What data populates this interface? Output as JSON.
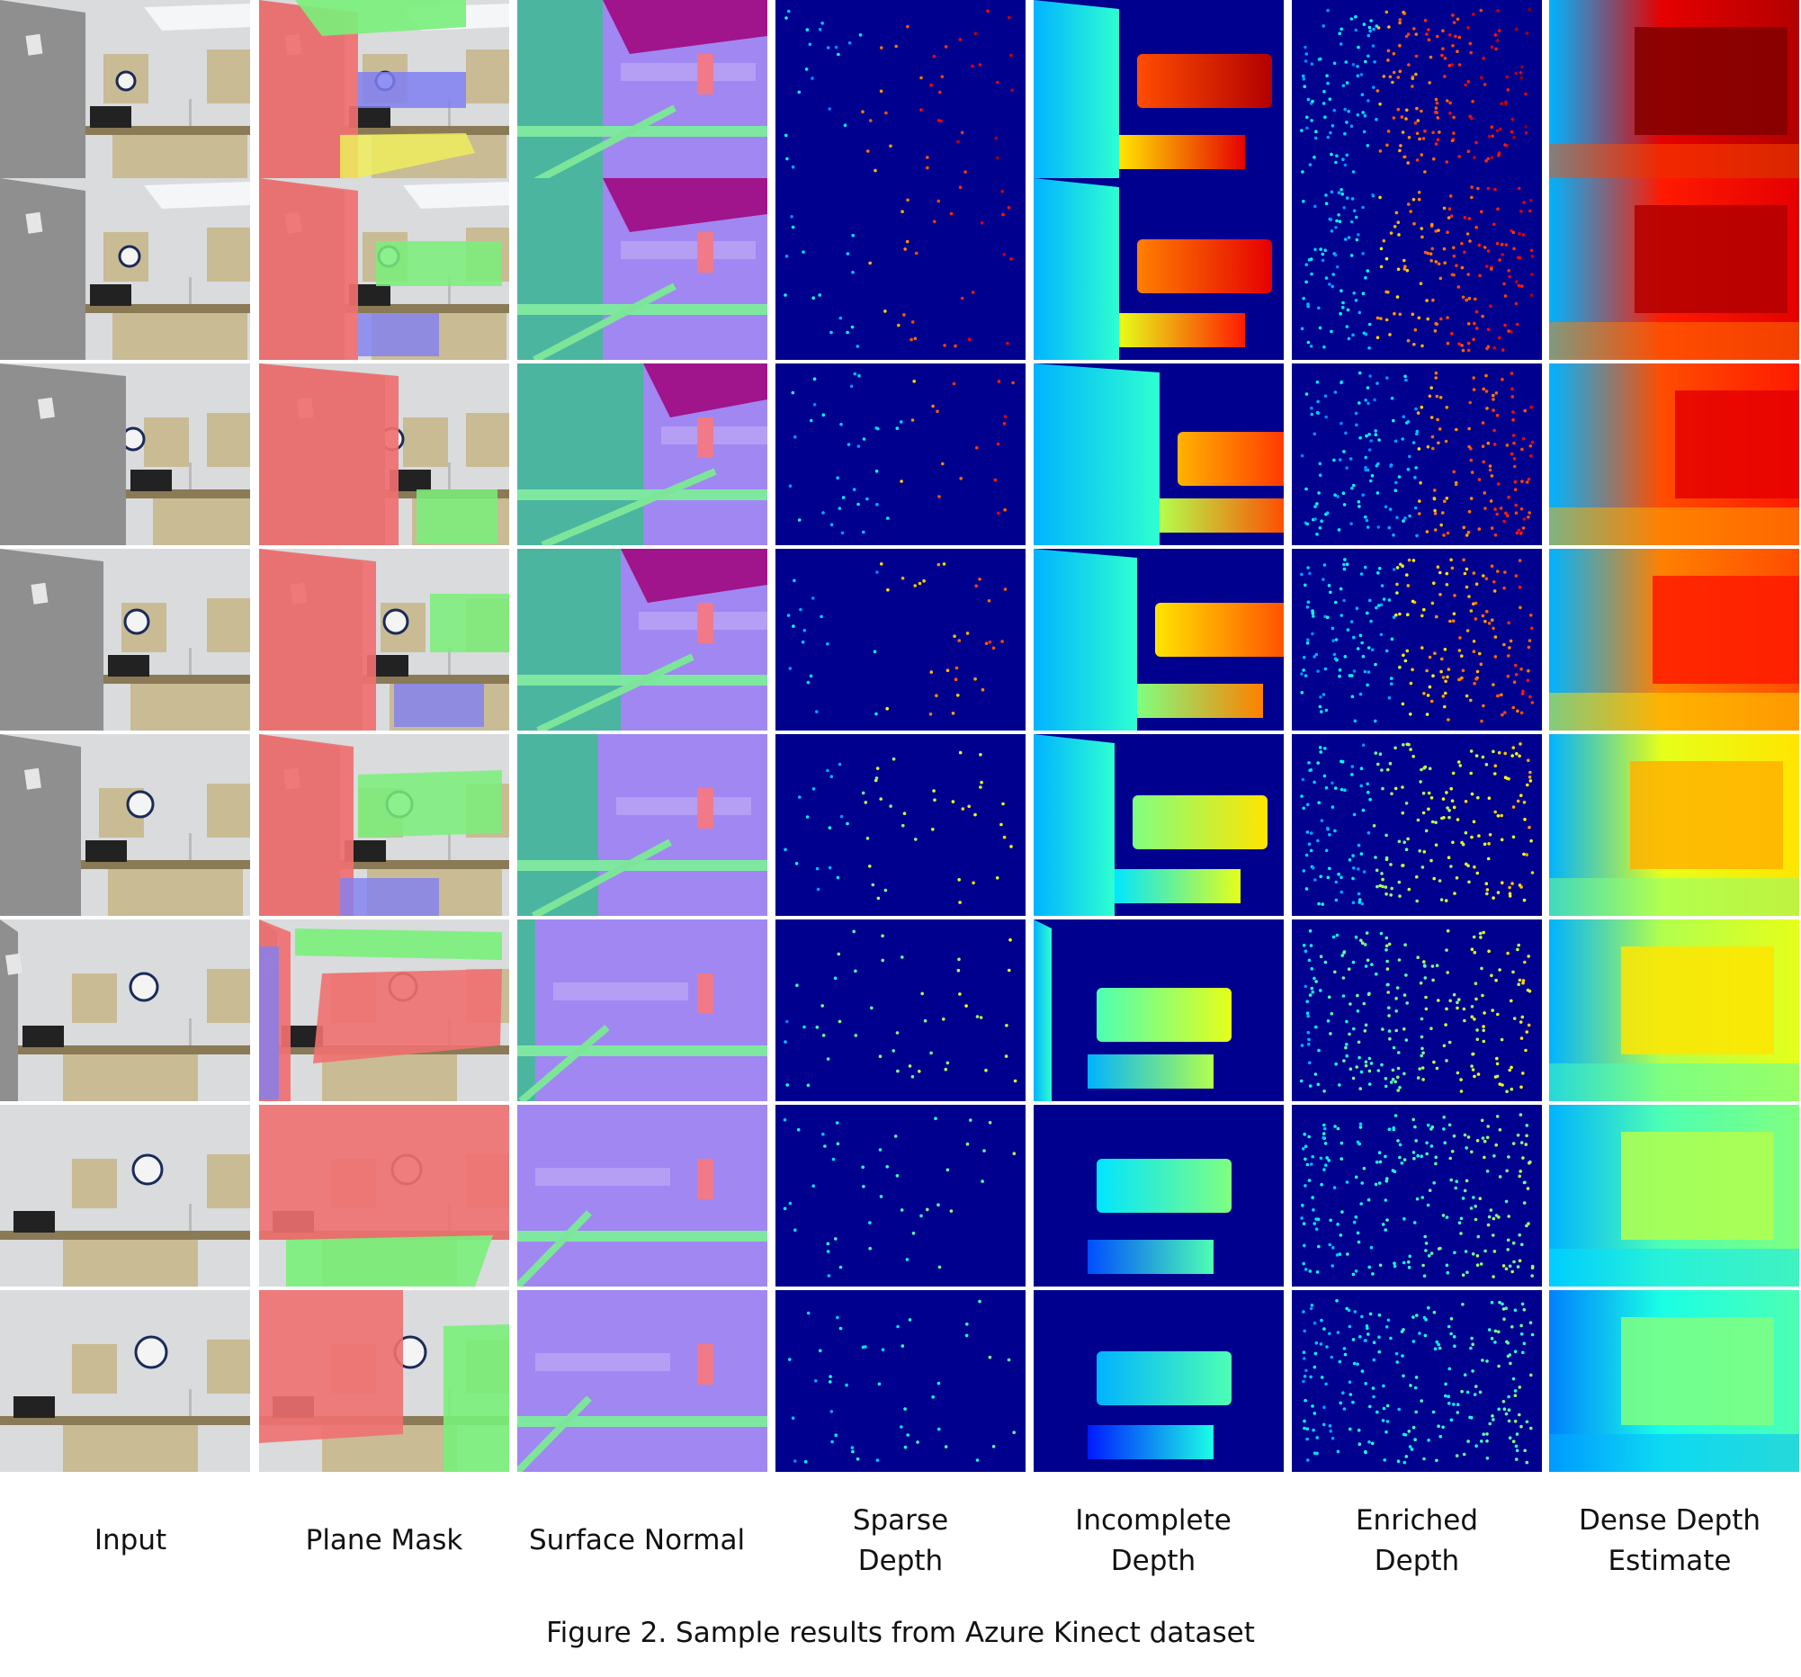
{
  "figure": {
    "caption": "Figure 2. Sample results from Azure Kinect dataset",
    "row_count": 8,
    "columns": [
      {
        "id": "input",
        "label": "Input",
        "kind": "photo"
      },
      {
        "id": "plane",
        "label": "Plane Mask",
        "kind": "plane"
      },
      {
        "id": "normal",
        "label": "Surface Normal",
        "kind": "normal"
      },
      {
        "id": "sparse",
        "label": "Sparse\nDepth",
        "kind": "sparse"
      },
      {
        "id": "incomplete",
        "label": "Incomplete\nDepth",
        "kind": "incomplete"
      },
      {
        "id": "enriched",
        "label": "Enriched\nDepth",
        "kind": "enriched"
      },
      {
        "id": "dense",
        "label": "Dense Depth\nEstimate",
        "kind": "dense"
      }
    ]
  },
  "colors": {
    "depth_background": "#00008f",
    "plane_red": "#f07070",
    "plane_green": "#79f07a",
    "plane_blue": "#7f7ff2",
    "plane_yellow": "#eded5c",
    "wall_gray": "#8f8f8f",
    "wall_white": "#d9dbdd",
    "cabinet": "#c9bb94",
    "countertop": "#8a7a56",
    "normal_teal": "#4bb5a0",
    "normal_purple": "#a087f2",
    "normal_magenta": "#a0148c"
  }
}
